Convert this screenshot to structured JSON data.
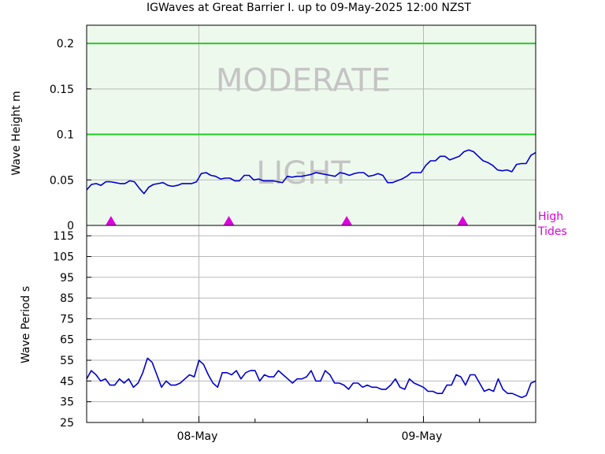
{
  "chart_data": [
    {
      "type": "line",
      "title": "IGWaves at Great Barrier I. up to 09-May-2025 12:00 NZST",
      "ylabel": "Wave Height m",
      "ylim": [
        0,
        0.22
      ],
      "yticks": [
        "0",
        "0.05",
        "0.1",
        "0.15",
        "0.2"
      ],
      "ytick_values": [
        0,
        0.05,
        0.1,
        0.15,
        0.2
      ],
      "xlim_hours": [
        0,
        48
      ],
      "grid": true,
      "background_color": "#eef9ee",
      "threshold_lines": [
        {
          "value": 0.1,
          "color": "#22cc22"
        },
        {
          "value": 0.2,
          "color": "#22cc22"
        }
      ],
      "zone_labels": [
        {
          "text": "MODERATE",
          "value": 0.16
        },
        {
          "text": "LIGHT",
          "value": 0.058
        }
      ],
      "series": [
        {
          "color": "#0000cc",
          "values": [
            0.039,
            0.045,
            0.046,
            0.044,
            0.048,
            0.048,
            0.047,
            0.046,
            0.046,
            0.049,
            0.048,
            0.041,
            0.035,
            0.042,
            0.045,
            0.046,
            0.047,
            0.044,
            0.043,
            0.044,
            0.046,
            0.046,
            0.046,
            0.048,
            0.057,
            0.058,
            0.055,
            0.054,
            0.051,
            0.052,
            0.052,
            0.049,
            0.049,
            0.055,
            0.055,
            0.05,
            0.051,
            0.049,
            0.049,
            0.049,
            0.048,
            0.047,
            0.054,
            0.053,
            0.054,
            0.054,
            0.055,
            0.056,
            0.058,
            0.057,
            0.056,
            0.055,
            0.054,
            0.058,
            0.057,
            0.055,
            0.057,
            0.058,
            0.058,
            0.054,
            0.055,
            0.057,
            0.055,
            0.047,
            0.047,
            0.049,
            0.051,
            0.054,
            0.058,
            0.058,
            0.058,
            0.066,
            0.071,
            0.071,
            0.076,
            0.076,
            0.072,
            0.074,
            0.076,
            0.081,
            0.083,
            0.081,
            0.076,
            0.071,
            0.069,
            0.066,
            0.061,
            0.06,
            0.061,
            0.059,
            0.067,
            0.068,
            0.068,
            0.077,
            0.08
          ]
        }
      ],
      "high_tides": {
        "label": "High Tides",
        "color": "#dd00dd",
        "hours": [
          2.6,
          15.2,
          27.8,
          40.2
        ]
      }
    },
    {
      "type": "line",
      "ylabel": "Wave Period s",
      "ylim": [
        25,
        120
      ],
      "yticks": [
        "25",
        "35",
        "45",
        "55",
        "65",
        "75",
        "85",
        "95",
        "105",
        "115"
      ],
      "ytick_values": [
        25,
        35,
        45,
        55,
        65,
        75,
        85,
        95,
        105,
        115
      ],
      "xlim_hours": [
        0,
        48
      ],
      "xticks": [
        "08-May",
        "09-May"
      ],
      "xtick_hours": [
        12,
        36
      ],
      "minor_xtick_hours": [
        6,
        18,
        30,
        42
      ],
      "grid": true,
      "background_color": "#ffffff",
      "series": [
        {
          "color": "#0000cc",
          "values": [
            46,
            50,
            48,
            45,
            46,
            43,
            43,
            46,
            44,
            46,
            42,
            44,
            49,
            56,
            54,
            48,
            42,
            45,
            43,
            43,
            44,
            46,
            48,
            47,
            55,
            53,
            48,
            44,
            42,
            49,
            49,
            48,
            50,
            46,
            49,
            50,
            50,
            45,
            48,
            47,
            47,
            50,
            48,
            46,
            44,
            46,
            46,
            47,
            50,
            45,
            45,
            50,
            48,
            44,
            44,
            43,
            41,
            44,
            44,
            42,
            43,
            42,
            42,
            41,
            41,
            43,
            46,
            42,
            41,
            46,
            44,
            43,
            42,
            40,
            40,
            39,
            39,
            43,
            43,
            48,
            47,
            43,
            48,
            48,
            44,
            40,
            41,
            40,
            46,
            41,
            39,
            39,
            38,
            37,
            38,
            44,
            45
          ]
        }
      ]
    }
  ]
}
